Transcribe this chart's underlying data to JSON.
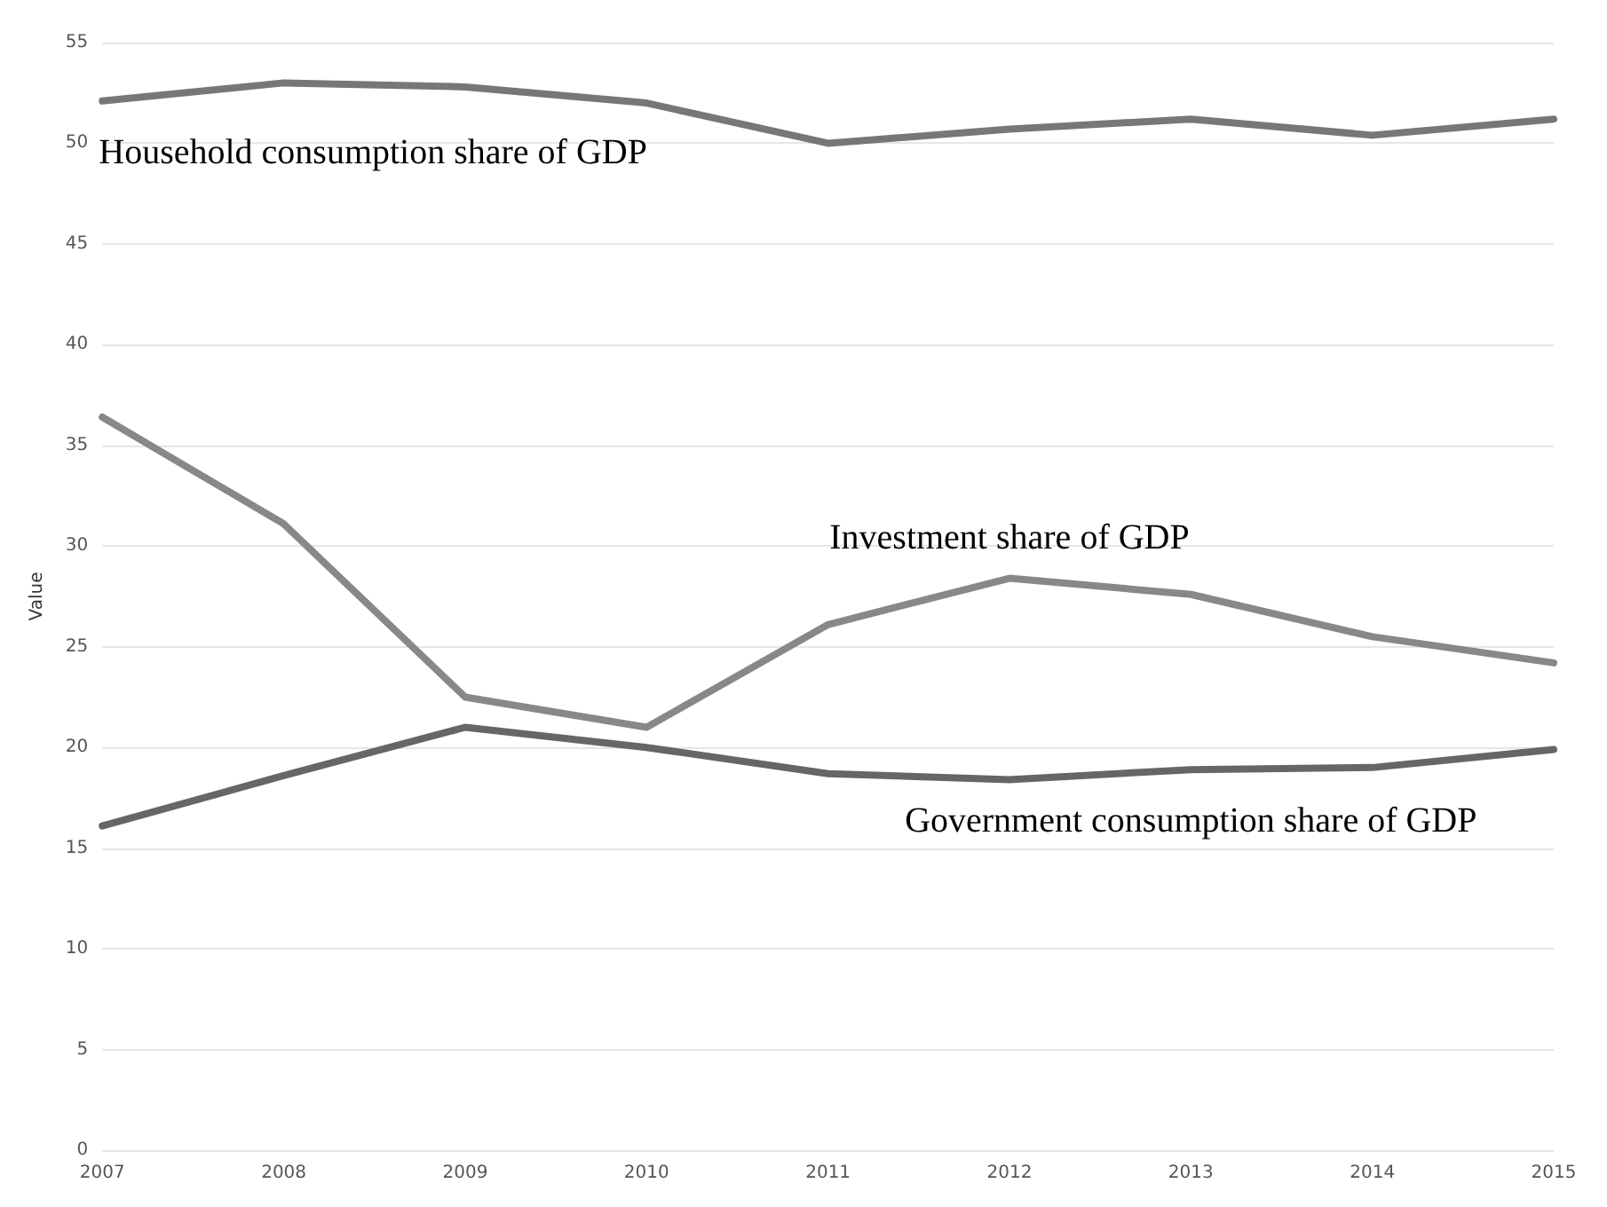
{
  "chart_data": {
    "type": "line",
    "ylabel": "Value",
    "categories": [
      "2007",
      "2008",
      "2009",
      "2010",
      "2011",
      "2012",
      "2013",
      "2014",
      "2015"
    ],
    "series": [
      {
        "name": "Household consumption share of GDP",
        "color": "#777777",
        "values": [
          52.1,
          53.0,
          52.8,
          52.0,
          50.0,
          50.7,
          51.2,
          50.4,
          51.2
        ]
      },
      {
        "name": "Investment share of GDP",
        "color": "#888888",
        "values": [
          36.4,
          31.1,
          22.5,
          21.0,
          26.1,
          28.4,
          27.6,
          25.5,
          24.2
        ]
      },
      {
        "name": "Government consumption share of GDP",
        "color": "#666666",
        "values": [
          16.1,
          18.6,
          21.0,
          20.0,
          18.7,
          18.4,
          18.9,
          19.0,
          19.9
        ]
      }
    ],
    "ylim": [
      0,
      55
    ],
    "yticks": [
      0,
      5,
      10,
      15,
      20,
      25,
      30,
      35,
      40,
      45,
      50,
      55
    ],
    "grid": "y",
    "legend": false,
    "marker": "none",
    "line_style": "solid"
  }
}
